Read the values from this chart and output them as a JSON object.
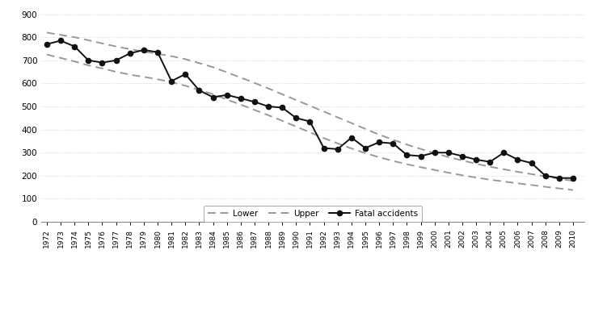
{
  "years": [
    1972,
    1973,
    1974,
    1975,
    1976,
    1977,
    1978,
    1979,
    1980,
    1981,
    1982,
    1983,
    1984,
    1985,
    1986,
    1987,
    1988,
    1989,
    1990,
    1991,
    1992,
    1993,
    1994,
    1995,
    1996,
    1997,
    1998,
    1999,
    2000,
    2001,
    2002,
    2003,
    2004,
    2005,
    2006,
    2007,
    2008,
    2009,
    2010
  ],
  "fatal": [
    770,
    785,
    760,
    700,
    690,
    700,
    730,
    745,
    735,
    610,
    640,
    570,
    540,
    550,
    535,
    520,
    500,
    495,
    450,
    435,
    320,
    315,
    365,
    320,
    345,
    340,
    290,
    285,
    300,
    300,
    285,
    270,
    260,
    300,
    270,
    255,
    200,
    190,
    190
  ],
  "lower": [
    725,
    710,
    695,
    678,
    665,
    650,
    638,
    628,
    618,
    605,
    590,
    572,
    553,
    530,
    508,
    485,
    462,
    438,
    413,
    388,
    363,
    340,
    318,
    298,
    280,
    264,
    250,
    237,
    225,
    213,
    202,
    192,
    183,
    175,
    167,
    160,
    152,
    145,
    138
  ],
  "upper": [
    820,
    810,
    800,
    787,
    773,
    760,
    748,
    738,
    728,
    718,
    705,
    688,
    670,
    648,
    625,
    602,
    578,
    553,
    528,
    503,
    478,
    453,
    428,
    403,
    378,
    356,
    335,
    316,
    298,
    281,
    266,
    252,
    239,
    228,
    217,
    207,
    197,
    187,
    178
  ],
  "line_color": "#111111",
  "band_color": "#999999",
  "bg_color": "#ffffff",
  "yticks": [
    0,
    100,
    200,
    300,
    400,
    500,
    600,
    700,
    800,
    900
  ],
  "ylim": [
    0,
    920
  ],
  "xlim_left": 1971.6,
  "xlim_right": 2010.8
}
